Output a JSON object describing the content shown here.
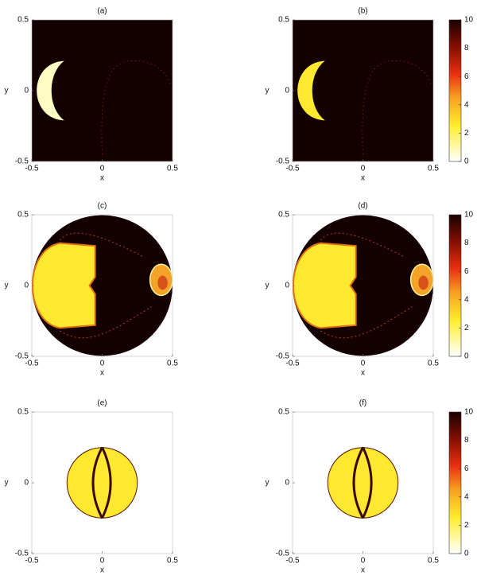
{
  "chart_data": [
    {
      "type": "image",
      "title": "(a)",
      "xlabel": "x",
      "ylabel": "y",
      "xlim": [
        -0.5,
        0.5
      ],
      "ylim": [
        -0.5,
        0.5
      ],
      "xticks": [
        -0.5,
        0,
        0.5
      ],
      "yticks": [
        -0.5,
        0,
        0.5
      ]
    },
    {
      "type": "image",
      "title": "(b)",
      "xlabel": "x",
      "ylabel": "y",
      "xlim": [
        -0.5,
        0.5
      ],
      "ylim": [
        -0.5,
        0.5
      ],
      "xticks": [
        -0.5,
        0,
        0.5
      ],
      "yticks": [
        -0.5,
        0,
        0.5
      ],
      "colorbar": {
        "clim": [
          0,
          10
        ],
        "ticks": [
          0,
          2,
          4,
          6,
          8,
          10
        ]
      }
    },
    {
      "type": "image",
      "title": "(c)",
      "xlabel": "x",
      "ylabel": "y",
      "xlim": [
        -0.5,
        0.5
      ],
      "ylim": [
        -0.5,
        0.5
      ],
      "xticks": [
        -0.5,
        0,
        0.5
      ],
      "yticks": [
        -0.5,
        0,
        0.5
      ]
    },
    {
      "type": "image",
      "title": "(d)",
      "xlabel": "x",
      "ylabel": "y",
      "xlim": [
        -0.5,
        0.5
      ],
      "ylim": [
        -0.5,
        0.5
      ],
      "xticks": [
        -0.5,
        0,
        0.5
      ],
      "yticks": [
        -0.5,
        0,
        0.5
      ],
      "colorbar": {
        "clim": [
          0,
          10
        ],
        "ticks": [
          0,
          2,
          4,
          6,
          8,
          10
        ]
      }
    },
    {
      "type": "image",
      "title": "(e)",
      "xlabel": "x",
      "ylabel": "y",
      "xlim": [
        -0.5,
        0.5
      ],
      "ylim": [
        -0.5,
        0.5
      ],
      "xticks": [
        -0.5,
        0,
        0.5
      ],
      "yticks": [
        -0.5,
        0,
        0.5
      ]
    },
    {
      "type": "image",
      "title": "(f)",
      "xlabel": "x",
      "ylabel": "y",
      "xlim": [
        -0.5,
        0.5
      ],
      "ylim": [
        -0.5,
        0.5
      ],
      "xticks": [
        -0.5,
        0,
        0.5
      ],
      "yticks": [
        -0.5,
        0,
        0.5
      ],
      "colorbar": {
        "clim": [
          0,
          10
        ],
        "ticks": [
          0,
          2,
          4,
          6,
          8,
          10
        ]
      }
    }
  ]
}
